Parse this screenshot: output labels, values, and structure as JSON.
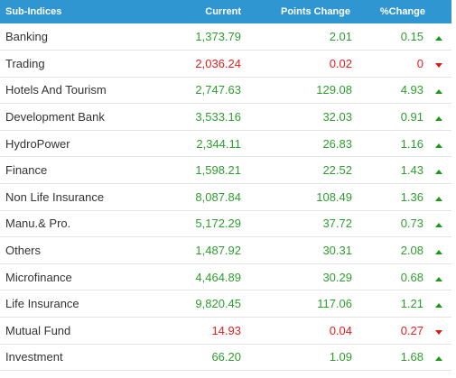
{
  "header": {
    "name": "Sub-Indices",
    "current": "Current",
    "points_change": "Points Change",
    "pct_change": "%Change"
  },
  "colors": {
    "header_bg": "#2f96d1",
    "up": "#2e9e2e",
    "down": "#e02020"
  },
  "rows": [
    {
      "name": "Banking",
      "current": "1,373.79",
      "points": "2.01",
      "pct": "0.15",
      "dir": "up"
    },
    {
      "name": "Trading",
      "current": "2,036.24",
      "points": "0.02",
      "pct": "0",
      "dir": "down"
    },
    {
      "name": "Hotels And Tourism",
      "current": "2,747.63",
      "points": "129.08",
      "pct": "4.93",
      "dir": "up"
    },
    {
      "name": "Development Bank",
      "current": "3,533.16",
      "points": "32.03",
      "pct": "0.91",
      "dir": "up"
    },
    {
      "name": "HydroPower",
      "current": "2,344.11",
      "points": "26.83",
      "pct": "1.16",
      "dir": "up"
    },
    {
      "name": "Finance",
      "current": "1,598.21",
      "points": "22.52",
      "pct": "1.43",
      "dir": "up"
    },
    {
      "name": "Non Life Insurance",
      "current": "8,087.84",
      "points": "108.49",
      "pct": "1.36",
      "dir": "up"
    },
    {
      "name": "Manu.& Pro.",
      "current": "5,172.29",
      "points": "37.72",
      "pct": "0.73",
      "dir": "up"
    },
    {
      "name": "Others",
      "current": "1,487.92",
      "points": "30.31",
      "pct": "2.08",
      "dir": "up"
    },
    {
      "name": "Microfinance",
      "current": "4,464.89",
      "points": "30.29",
      "pct": "0.68",
      "dir": "up"
    },
    {
      "name": "Life Insurance",
      "current": "9,820.45",
      "points": "117.06",
      "pct": "1.21",
      "dir": "up"
    },
    {
      "name": "Mutual Fund",
      "current": "14.93",
      "points": "0.04",
      "pct": "0.27",
      "dir": "down"
    },
    {
      "name": "Investment",
      "current": "66.20",
      "points": "1.09",
      "pct": "1.68",
      "dir": "up"
    }
  ]
}
